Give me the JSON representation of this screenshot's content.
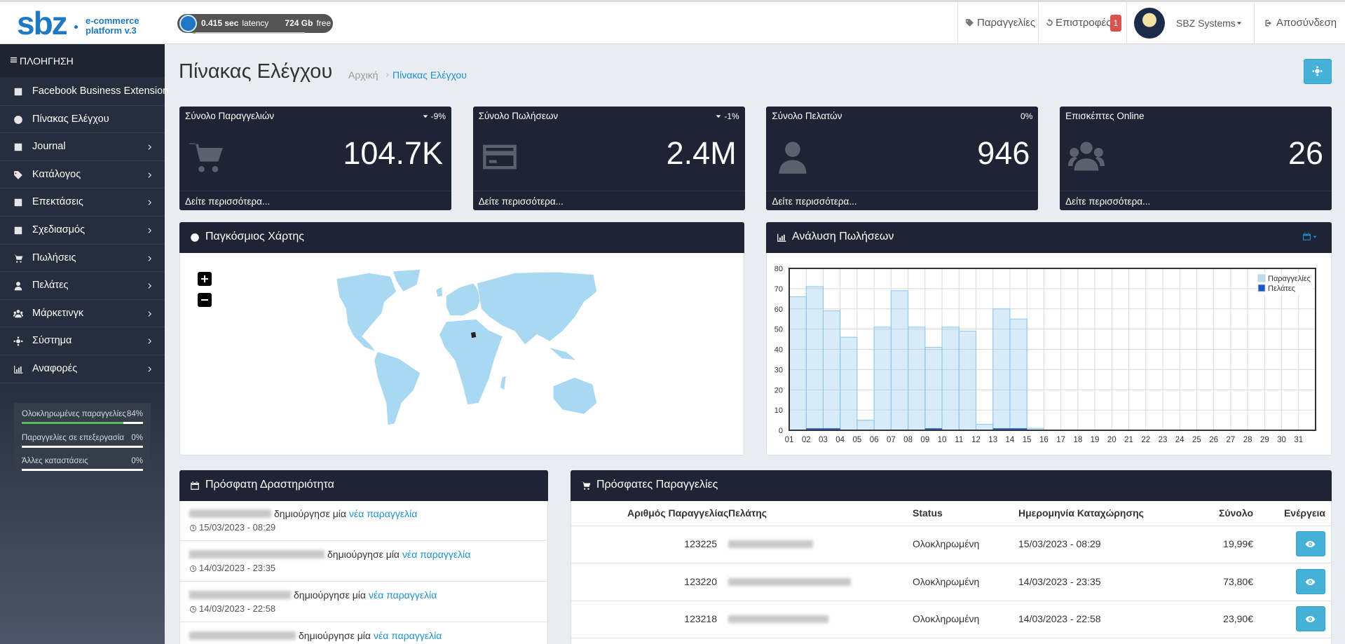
{
  "header": {
    "logo": "sbz",
    "tagline": [
      "e-commerce",
      "platform v.3"
    ],
    "latency": {
      "value": "0.415 sec",
      "label": "latency"
    },
    "storage": {
      "value": "724 Gb",
      "label": "free"
    },
    "nav": [
      {
        "label": "Παραγγελίες"
      },
      {
        "label": "Επιστροφές",
        "badge": 1
      }
    ],
    "user": "SBZ Systems",
    "logout": "Αποσύνδεση"
  },
  "sidebar": {
    "title": "ΠΛΟΗΓΗΣΗ",
    "items": [
      "Facebook Business Extension",
      "Πίνακας Ελέγχου",
      "Journal",
      "Κατάλογος",
      "Επεκτάσεις",
      "Σχεδιασμός",
      "Πωλήσεις",
      "Πελάτες",
      "Μάρκετινγκ",
      "Σύστημα",
      "Αναφορές"
    ],
    "stats": [
      {
        "label": "Ολοκληρωμένες παραγγελίες",
        "value": 84,
        "value_label": "84%"
      },
      {
        "label": "Παραγγελίες σε επεξεργασία",
        "value": 0,
        "value_label": "0%"
      },
      {
        "label": "Άλλες καταστάσεις",
        "value": 0,
        "value_label": "0%"
      }
    ]
  },
  "page": {
    "title": "Πίνακας Ελέγχου",
    "breadcrumb": [
      "Αρχική",
      "Πίνακας Ελέγχου"
    ]
  },
  "tiles": [
    {
      "title": "Σύνολο Παραγγελιών",
      "change": "-9%",
      "value": "104.7K",
      "link": "Δείτε περισσότερα..."
    },
    {
      "title": "Σύνολο Πωλήσεων",
      "change": "-1%",
      "value": "2.4M",
      "link": "Δείτε περισσότερα..."
    },
    {
      "title": "Σύνολο Πελατών",
      "change": "0%",
      "value": 946,
      "link": "Δείτε περισσότερα..."
    },
    {
      "title": "Επισκέπτες Online",
      "value": 26,
      "link": "Δείτε περισσότερα..."
    }
  ],
  "map": {
    "title": "Παγκόσμιος Χάρτης"
  },
  "chart_data": {
    "type": "bar",
    "title": "Ανάλυση Πωλήσεων",
    "categories": [
      "01",
      "02",
      "03",
      "04",
      "05",
      "06",
      "07",
      "08",
      "09",
      "10",
      "11",
      "12",
      "13",
      "14",
      "15",
      "16",
      "17",
      "18",
      "19",
      "20",
      "21",
      "22",
      "23",
      "24",
      "25",
      "26",
      "27",
      "28",
      "29",
      "30",
      "31"
    ],
    "series": [
      {
        "name": "Παραγγελίες",
        "color": "#8cc6ee",
        "values": [
          66,
          71,
          59,
          46,
          5,
          51,
          69,
          51,
          41,
          51,
          49,
          3,
          60,
          55,
          1,
          0,
          0,
          0,
          0,
          0,
          0,
          0,
          0,
          0,
          0,
          0,
          0,
          0,
          0,
          0,
          0
        ]
      },
      {
        "name": "Πελάτες",
        "color": "#1a56c4",
        "values": [
          0,
          1,
          1,
          0,
          0,
          0,
          0,
          0,
          1,
          0,
          0,
          0,
          1,
          1,
          0,
          0,
          0,
          0,
          0,
          0,
          0,
          0,
          0,
          0,
          0,
          0,
          0,
          0,
          0,
          0,
          0
        ]
      }
    ],
    "ylim": [
      0,
      80
    ],
    "yticks": [
      0,
      10,
      20,
      30,
      40,
      50,
      60,
      70,
      80
    ],
    "grid": true,
    "legend": "upper right"
  },
  "activity": {
    "title": "Πρόσφατη Δραστηριότητα",
    "items": [
      {
        "text": "δημιούργησε μία",
        "link": "νέα παραγγελία",
        "time": "15/03/2023 - 08:29"
      },
      {
        "text": "δημιούργησε μία",
        "link": "νέα παραγγελία",
        "time": "14/03/2023 - 23:35"
      },
      {
        "text": "δημιούργησε μία",
        "link": "νέα παραγγελία",
        "time": "14/03/2023 - 22:58"
      },
      {
        "text": "δημιούργησε μία",
        "link": "νέα παραγγελία"
      }
    ]
  },
  "orders": {
    "title": "Πρόσφατες Παραγγελίες",
    "columns": [
      "Αριθμός Παραγγελίας",
      "Πελάτης",
      "Status",
      "Ημερομηνία Καταχώρησης",
      "Σύνολο",
      "Ενέργεια"
    ],
    "rows": [
      {
        "id": "123225",
        "status": "Ολοκληρωμένη",
        "date": "15/03/2023 - 08:29",
        "total": "19,99€"
      },
      {
        "id": "123220",
        "status": "Ολοκληρωμένη",
        "date": "14/03/2023 - 23:35",
        "total": "73,80€"
      },
      {
        "id": "123218",
        "status": "Ολοκληρωμένη",
        "date": "14/03/2023 - 22:58",
        "total": "23,90€"
      }
    ]
  }
}
